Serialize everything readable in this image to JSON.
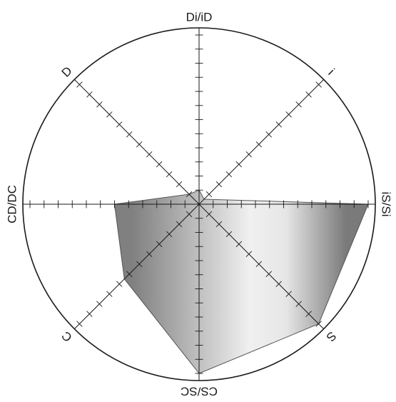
{
  "chart_data": {
    "type": "radar",
    "axes": [
      "Di/iD",
      "i",
      "iS/Si",
      "S",
      "CS/SC",
      "C",
      "CD/DC",
      "D"
    ],
    "scale": {
      "min": 0,
      "max": 12,
      "ticks_per_axis": 12
    },
    "series": [
      {
        "values": [
          1,
          0.5,
          12,
          12,
          12,
          7.5,
          6,
          1
        ]
      }
    ],
    "fill_gradient": [
      "#808080",
      "#f0f0f0",
      "#e6e6e6",
      "#7a7a7a"
    ],
    "outline_color": "#555555",
    "grid": true,
    "legend": "none"
  }
}
